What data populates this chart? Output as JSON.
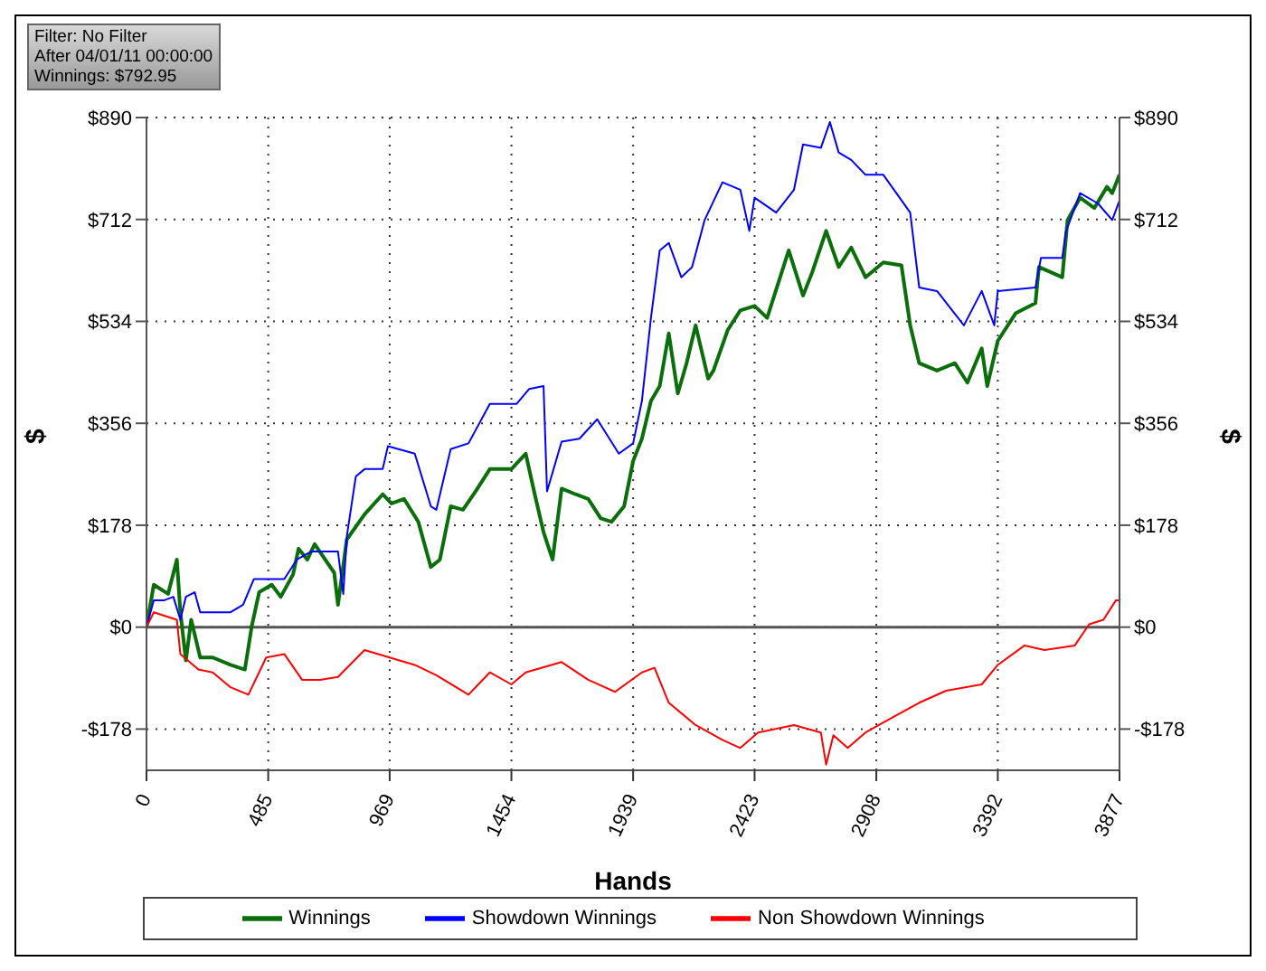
{
  "chart_data": {
    "type": "line",
    "xlabel": "Hands",
    "ylabel": "$",
    "y2label": "$",
    "annotations": [
      "Filter: No Filter",
      "After 04/01/11 00:00:00",
      "Winnings: $792.95"
    ],
    "xlim": [
      0,
      3877
    ],
    "xticks": [
      0,
      485,
      969,
      1454,
      1939,
      2423,
      2908,
      3392,
      3877
    ],
    "ylim": [
      -250,
      890
    ],
    "yticks": [
      {
        "value": -178,
        "label": "-$178"
      },
      {
        "value": 0,
        "label": "$0"
      },
      {
        "value": 178,
        "label": "$178"
      },
      {
        "value": 356,
        "label": "$356"
      },
      {
        "value": 534,
        "label": "$534"
      },
      {
        "value": 712,
        "label": "$712"
      },
      {
        "value": 890,
        "label": "$890"
      }
    ],
    "y2lim": [
      -250,
      890
    ],
    "y2ticks": [
      {
        "value": -178,
        "label": "-$178"
      },
      {
        "value": 0,
        "label": "$0"
      },
      {
        "value": 178,
        "label": "$178"
      },
      {
        "value": 356,
        "label": "$356"
      },
      {
        "value": 534,
        "label": "$534"
      },
      {
        "value": 712,
        "label": "$712"
      },
      {
        "value": 890,
        "label": "$890"
      }
    ],
    "grid": true,
    "legend": "bottom",
    "marker": "none",
    "line_style": "solid",
    "ref_lines": [
      {
        "axis": "y",
        "value": 0,
        "color": "#555555"
      }
    ],
    "series": [
      {
        "name": "Winnings",
        "color": "#0a6e0a",
        "x": [
          0,
          29,
          86,
          121,
          135,
          157,
          178,
          214,
          264,
          335,
          392,
          420,
          449,
          499,
          535,
          584,
          606,
          641,
          670,
          748,
          763,
          798,
          869,
          941,
          976,
          1026,
          1083,
          1133,
          1169,
          1212,
          1261,
          1311,
          1368,
          1454,
          1511,
          1547,
          1582,
          1618,
          1654,
          1710,
          1760,
          1810,
          1853,
          1903,
          1939,
          1974,
          2010,
          2045,
          2081,
          2117,
          2152,
          2188,
          2238,
          2259,
          2316,
          2366,
          2423,
          2473,
          2559,
          2616,
          2652,
          2708,
          2758,
          2808,
          2865,
          2936,
          3008,
          3043,
          3079,
          3150,
          3221,
          3271,
          3328,
          3350,
          3392,
          3463,
          3542,
          3556,
          3649,
          3670,
          3720,
          3777,
          3827,
          3848,
          3877
        ],
        "values": [
          0,
          74,
          58,
          118,
          26,
          -58,
          13,
          -53,
          -53,
          -66,
          -74,
          3,
          61,
          74,
          53,
          92,
          137,
          118,
          145,
          95,
          39,
          153,
          197,
          232,
          216,
          224,
          184,
          105,
          118,
          211,
          205,
          237,
          276,
          276,
          303,
          232,
          166,
          118,
          242,
          232,
          224,
          190,
          184,
          211,
          290,
          329,
          395,
          421,
          513,
          408,
          461,
          527,
          434,
          448,
          519,
          553,
          561,
          540,
          658,
          579,
          619,
          692,
          629,
          663,
          611,
          637,
          632,
          527,
          461,
          448,
          461,
          427,
          487,
          421,
          500,
          548,
          566,
          629,
          611,
          711,
          750,
          732,
          769,
          758,
          790
        ]
      },
      {
        "name": "Showdown Winnings",
        "color": "#0000ff",
        "x": [
          0,
          29,
          71,
          107,
          135,
          157,
          192,
          214,
          264,
          335,
          385,
          428,
          477,
          549,
          599,
          656,
          763,
          784,
          798,
          834,
          869,
          941,
          962,
          1069,
          1133,
          1155,
          1212,
          1283,
          1368,
          1475,
          1525,
          1582,
          1596,
          1654,
          1725,
          1796,
          1882,
          1939,
          1974,
          2010,
          2045,
          2081,
          2131,
          2174,
          2224,
          2295,
          2366,
          2402,
          2423,
          2509,
          2580,
          2616,
          2687,
          2723,
          2758,
          2808,
          2865,
          2936,
          3043,
          3079,
          3150,
          3257,
          3328,
          3378,
          3392,
          3542,
          3564,
          3649,
          3663,
          3720,
          3791,
          3848,
          3877
        ],
        "values": [
          0,
          47,
          47,
          53,
          13,
          53,
          61,
          26,
          26,
          26,
          39,
          84,
          84,
          84,
          118,
          132,
          132,
          58,
          158,
          263,
          276,
          276,
          316,
          303,
          211,
          205,
          311,
          321,
          390,
          390,
          416,
          421,
          237,
          324,
          329,
          363,
          303,
          321,
          395,
          540,
          658,
          671,
          611,
          629,
          711,
          777,
          764,
          692,
          750,
          724,
          764,
          843,
          837,
          882,
          829,
          816,
          790,
          790,
          724,
          593,
          587,
          527,
          587,
          527,
          587,
          593,
          645,
          645,
          690,
          758,
          740,
          711,
          745
        ]
      },
      {
        "name": "Non Showdown Winnings",
        "color": "#ff0000",
        "x": [
          0,
          29,
          121,
          135,
          207,
          264,
          335,
          406,
          477,
          549,
          620,
          691,
          763,
          869,
          969,
          1069,
          1155,
          1283,
          1368,
          1454,
          1511,
          1654,
          1760,
          1867,
          1974,
          2024,
          2081,
          2188,
          2295,
          2366,
          2437,
          2580,
          2687,
          2708,
          2737,
          2794,
          2865,
          2972,
          3079,
          3186,
          3328,
          3392,
          3499,
          3578,
          3699,
          3756,
          3813,
          3863,
          3877
        ],
        "values": [
          0,
          26,
          13,
          -47,
          -74,
          -79,
          -105,
          -118,
          -53,
          -47,
          -92,
          -92,
          -87,
          -40,
          -53,
          -66,
          -84,
          -118,
          -79,
          -100,
          -79,
          -61,
          -92,
          -113,
          -79,
          -71,
          -132,
          -171,
          -197,
          -211,
          -184,
          -171,
          -184,
          -240,
          -189,
          -211,
          -184,
          -158,
          -132,
          -111,
          -100,
          -66,
          -32,
          -40,
          -32,
          5,
          13,
          47,
          47
        ]
      }
    ]
  }
}
